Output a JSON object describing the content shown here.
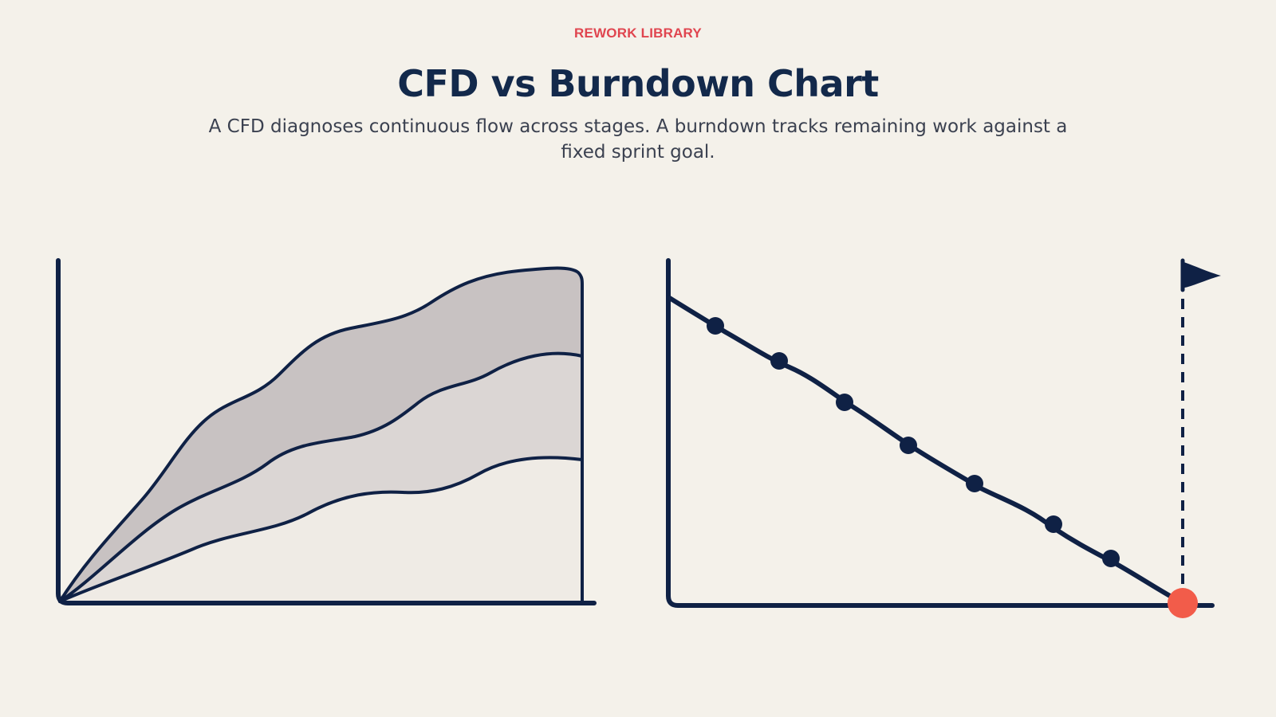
{
  "header": {
    "eyebrow": "REWORK LIBRARY",
    "title": "CFD vs Burndown Chart",
    "subtitle": "A CFD diagnoses continuous flow across stages. A burndown tracks remaining work against a fixed sprint goal."
  },
  "colors": {
    "background": "#f4f1ea",
    "ink": "#0f2145",
    "accent": "#e0454f",
    "goal_marker": "#f25c4a",
    "cfd_top_band": "#c8c2c2",
    "cfd_middle_band": "#dbd6d4",
    "cfd_bottom_band": "#efebe5"
  },
  "cfd_illustration": {
    "bands": [
      "top-band",
      "middle-band",
      "bottom-band"
    ]
  },
  "burndown_illustration": {
    "milestone_points": 7,
    "goal_icon": "flag-icon",
    "end_marker": "goal-point"
  }
}
